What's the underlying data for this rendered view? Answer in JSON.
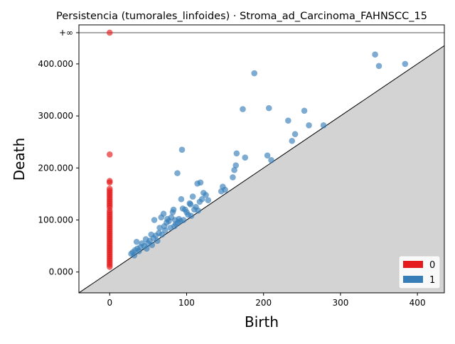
{
  "chart_data": {
    "type": "scatter",
    "title": "Persistencia (tumorales_linfoides) · Stroma_ad_Carcinoma_FAHNSCC_15",
    "xlabel": "Birth",
    "ylabel": "Death",
    "xlim": [
      -40,
      435
    ],
    "ylim": [
      -40000,
      475000
    ],
    "x_ticks": [
      {
        "value": 0,
        "label": "0"
      },
      {
        "value": 100,
        "label": "100"
      },
      {
        "value": 200,
        "label": "200"
      },
      {
        "value": 300,
        "label": "300"
      },
      {
        "value": 400,
        "label": "400"
      }
    ],
    "y_ticks": [
      {
        "value": 0,
        "label": "0.000"
      },
      {
        "value": 100000,
        "label": "100.000"
      },
      {
        "value": 200000,
        "label": "200.000"
      },
      {
        "value": 300000,
        "label": "300.000"
      },
      {
        "value": 400000,
        "label": "400.000"
      }
    ],
    "infinity_label": "+∞",
    "infinity_line_value": 460000,
    "diagonal": true,
    "diagonal_fill_color": "#d3d3d3",
    "legend": {
      "position": "lower-right",
      "entries": [
        {
          "label": "0",
          "color": "#e41a1c"
        },
        {
          "label": "1",
          "color": "#377eb8"
        }
      ]
    },
    "series": [
      {
        "name": "0",
        "color": "#e41a1c",
        "points": [
          [
            0,
            460000
          ],
          [
            0,
            226000
          ],
          [
            0,
            175000
          ],
          [
            0,
            172000
          ],
          [
            0,
            160000
          ],
          [
            0,
            156000
          ],
          [
            0,
            152000
          ],
          [
            0,
            148000
          ],
          [
            0,
            144000
          ],
          [
            0,
            140000
          ],
          [
            0,
            136000
          ],
          [
            0,
            132000
          ],
          [
            0,
            128000
          ],
          [
            0,
            124000
          ],
          [
            0,
            118000
          ],
          [
            0,
            114000
          ],
          [
            0,
            110000
          ],
          [
            0,
            106000
          ],
          [
            0,
            102000
          ],
          [
            0,
            98000
          ],
          [
            0,
            94000
          ],
          [
            0,
            90000
          ],
          [
            0,
            86000
          ],
          [
            0,
            82000
          ],
          [
            0,
            78000
          ],
          [
            0,
            74000
          ],
          [
            0,
            70000
          ],
          [
            0,
            66000
          ],
          [
            0,
            62000
          ],
          [
            0,
            58000
          ],
          [
            0,
            54000
          ],
          [
            0,
            50000
          ],
          [
            0,
            46000
          ],
          [
            0,
            42000
          ],
          [
            0,
            38000
          ],
          [
            0,
            34000
          ],
          [
            0,
            30000
          ],
          [
            0,
            26000
          ],
          [
            0,
            22000
          ],
          [
            0,
            18000
          ],
          [
            0,
            14000
          ],
          [
            0,
            10000
          ]
        ]
      },
      {
        "name": "1",
        "color": "#377eb8",
        "points": [
          [
            28,
            35000
          ],
          [
            30,
            38000
          ],
          [
            32,
            32000
          ],
          [
            33,
            42000
          ],
          [
            35,
            58000
          ],
          [
            36,
            45000
          ],
          [
            38,
            40000
          ],
          [
            40,
            48000
          ],
          [
            42,
            55000
          ],
          [
            45,
            50000
          ],
          [
            47,
            63000
          ],
          [
            48,
            45000
          ],
          [
            50,
            55000
          ],
          [
            52,
            60000
          ],
          [
            54,
            72000
          ],
          [
            55,
            52000
          ],
          [
            57,
            65000
          ],
          [
            58,
            100000
          ],
          [
            60,
            70000
          ],
          [
            62,
            60000
          ],
          [
            64,
            75000
          ],
          [
            65,
            85000
          ],
          [
            67,
            105000
          ],
          [
            68,
            72000
          ],
          [
            70,
            112000
          ],
          [
            71,
            88000
          ],
          [
            72,
            80000
          ],
          [
            74,
            95000
          ],
          [
            75,
            102000
          ],
          [
            77,
            98000
          ],
          [
            79,
            85000
          ],
          [
            80,
            105000
          ],
          [
            82,
            115000
          ],
          [
            83,
            120000
          ],
          [
            84,
            88000
          ],
          [
            85,
            100000
          ],
          [
            86,
            92000
          ],
          [
            88,
            190000
          ],
          [
            89,
            95000
          ],
          [
            90,
            102000
          ],
          [
            92,
            98000
          ],
          [
            93,
            140000
          ],
          [
            94,
            235000
          ],
          [
            95,
            122000
          ],
          [
            96,
            100000
          ],
          [
            98,
            120000
          ],
          [
            100,
            115000
          ],
          [
            102,
            110000
          ],
          [
            104,
            132000
          ],
          [
            105,
            130000
          ],
          [
            106,
            108000
          ],
          [
            108,
            145000
          ],
          [
            110,
            120000
          ],
          [
            112,
            125000
          ],
          [
            114,
            170000
          ],
          [
            115,
            118000
          ],
          [
            117,
            135000
          ],
          [
            118,
            172000
          ],
          [
            120,
            140000
          ],
          [
            122,
            152000
          ],
          [
            125,
            148000
          ],
          [
            128,
            138000
          ],
          [
            145,
            155000
          ],
          [
            147,
            164000
          ],
          [
            150,
            158000
          ],
          [
            160,
            182000
          ],
          [
            162,
            196000
          ],
          [
            164,
            205000
          ],
          [
            165,
            228000
          ],
          [
            173,
            313000
          ],
          [
            176,
            220000
          ],
          [
            188,
            382000
          ],
          [
            205,
            224000
          ],
          [
            207,
            315000
          ],
          [
            210,
            215000
          ],
          [
            232,
            291000
          ],
          [
            237,
            252000
          ],
          [
            241,
            265000
          ],
          [
            253,
            310000
          ],
          [
            259,
            282000
          ],
          [
            278,
            282000
          ],
          [
            345,
            418000
          ],
          [
            350,
            396000
          ],
          [
            384,
            400000
          ]
        ]
      }
    ]
  }
}
